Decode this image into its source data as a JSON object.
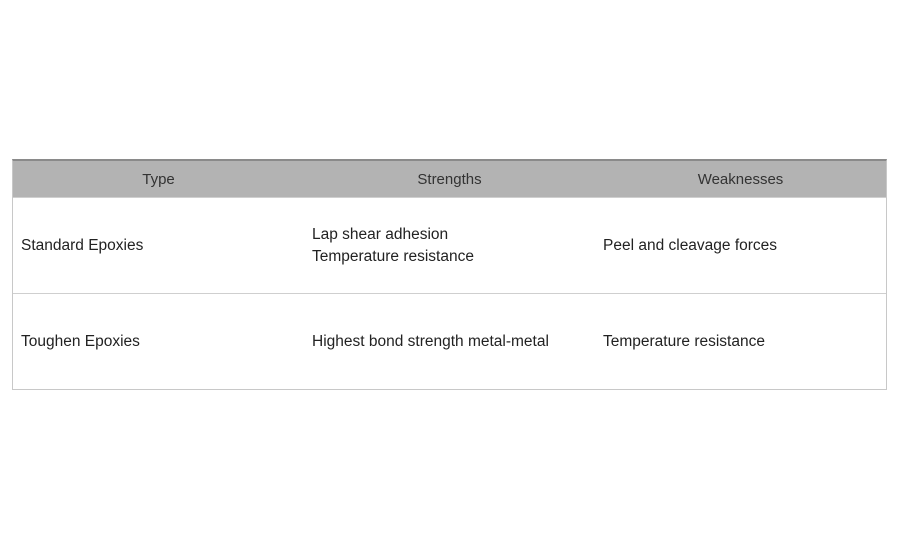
{
  "table": {
    "header": [
      "Type",
      "Strengths",
      "Weaknesses"
    ],
    "rows": [
      [
        "Standard Epoxies",
        [
          "Lap shear adhesion",
          "Temperature resistance"
        ],
        "Peel and cleavage forces"
      ],
      [
        "Toughen Epoxies",
        "Highest bond strength metal-metal",
        "Temperature resistance"
      ]
    ]
  }
}
